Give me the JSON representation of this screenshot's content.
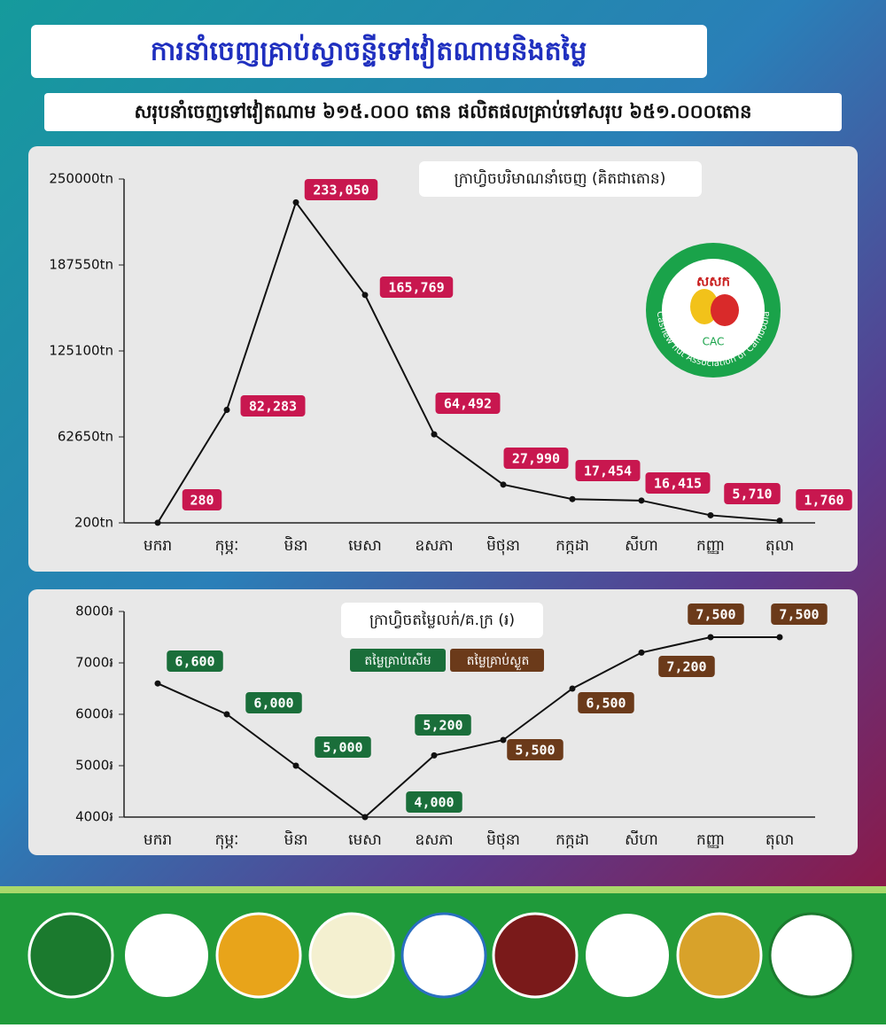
{
  "header": {
    "title": "ការនាំចេញគ្រាប់ស្វាចន្ទីទៅវៀតណាមនិងតម្លៃ",
    "subtitle": "សរុបនាំចេញទៅវៀតណាម ៦១៥.០០០ តោន  ផលិតផលគ្រាប់ទៅសរុប ៦៥១.០០០តោន"
  },
  "logo": {
    "short": "សសក",
    "abbr": "CAC",
    "name": "Cashew nut Association of Cambodia"
  },
  "chart_data": [
    {
      "type": "line",
      "title": "ក្រាហ្វិចបរិមាណនាំចេញ (គិតជាតោន)",
      "categories": [
        "មករា",
        "កុម្ភៈ",
        "មិនា",
        "មេសា",
        "ឧសភា",
        "មិថុនា",
        "កក្កដា",
        "សីហា",
        "កញ្ញា",
        "តុលា"
      ],
      "values": [
        280,
        82283,
        233050,
        165769,
        64492,
        27990,
        17454,
        16415,
        5710,
        1760
      ],
      "value_labels": [
        "280",
        "82,283",
        "233,050",
        "165,769",
        "64,492",
        "27,990",
        "17,454",
        "16,415",
        "5,710",
        "1,760"
      ],
      "color": "#111111",
      "label_color": "#c8174f",
      "ylim": [
        200,
        250000
      ],
      "yticks": [
        {
          "value": 200,
          "label": "200tn"
        },
        {
          "value": 62650,
          "label": "62650tn"
        },
        {
          "value": 125100,
          "label": "125100tn"
        },
        {
          "value": 187550,
          "label": "187550tn"
        },
        {
          "value": 250000,
          "label": "250000tn"
        }
      ]
    },
    {
      "type": "line",
      "title": "ក្រាហ្វិចតម្លៃលក់/គ.ក្រ (៛)",
      "categories": [
        "មករា",
        "កុម្ភៈ",
        "មិនា",
        "មេសា",
        "ឧសភា",
        "មិថុនា",
        "កក្កដា",
        "សីហា",
        "កញ្ញា",
        "តុលា"
      ],
      "values": [
        6600,
        6000,
        5000,
        4000,
        5200,
        5500,
        6500,
        7200,
        7500,
        7500
      ],
      "value_labels": [
        "6,600",
        "6,000",
        "5,000",
        "4,000",
        "5,200",
        "5,500",
        "6,500",
        "7,200",
        "7,500",
        "7,500"
      ],
      "label_colors": [
        "#1a6e3a",
        "#1a6e3a",
        "#1a6e3a",
        "#1a6e3a",
        "#1a6e3a",
        "#6b3a1a",
        "#6b3a1a",
        "#6b3a1a",
        "#6b3a1a",
        "#6b3a1a"
      ],
      "legend": [
        {
          "name": "តម្លៃគ្រាប់សើម",
          "color": "#1a6e3a"
        },
        {
          "name": "តម្លៃគ្រាប់ស្ងួត",
          "color": "#6b3a1a"
        }
      ],
      "color": "#111111",
      "ylim": [
        4000,
        8000
      ],
      "yticks": [
        {
          "value": 4000,
          "label": "4000៛"
        },
        {
          "value": 5000,
          "label": "5000៛"
        },
        {
          "value": 6000,
          "label": "6000៛"
        },
        {
          "value": 7000,
          "label": "7000៛"
        },
        {
          "value": 8000,
          "label": "8000៛"
        }
      ]
    }
  ]
}
